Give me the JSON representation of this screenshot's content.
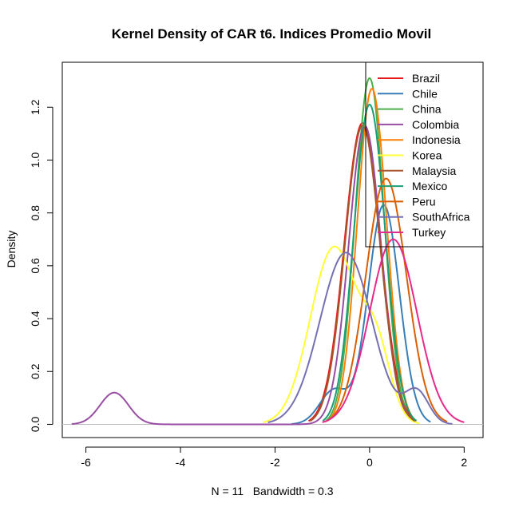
{
  "chart_data": {
    "type": "line",
    "title": "Kernel Density of CAR t6. Indices Promedio Movil",
    "xlabel": "N = 11   Bandwidth = 0.3",
    "ylabel": "Density",
    "xlim": [
      -6.5,
      2.4
    ],
    "ylim": [
      -0.05,
      1.37
    ],
    "x_ticks": [
      -6,
      -4,
      -2,
      0,
      2
    ],
    "y_ticks": [
      0.0,
      0.2,
      0.4,
      0.6,
      0.8,
      1.0,
      1.2
    ],
    "x_tick_labels": [
      "-6",
      "-4",
      "-2",
      "0",
      "2"
    ],
    "y_tick_labels": [
      "0.0",
      "0.2",
      "0.4",
      "0.6",
      "0.8",
      "1.0",
      "1.2"
    ],
    "legend_position": "top-right",
    "baseline": 0,
    "series": [
      {
        "name": "Brazil",
        "color": "#E41A1C",
        "components": [
          [
            -0.15,
            0.38,
            1.14
          ]
        ]
      },
      {
        "name": "Chile",
        "color": "#377EB8",
        "components": [
          [
            0.3,
            0.33,
            0.83
          ],
          [
            -0.75,
            0.3,
            0.13
          ]
        ]
      },
      {
        "name": "China",
        "color": "#4DAF4A",
        "components": [
          [
            0.0,
            0.305,
            1.31
          ]
        ]
      },
      {
        "name": "Colombia",
        "color": "#984EA3",
        "components": [
          [
            -0.1,
            0.34,
            1.13
          ],
          [
            -5.4,
            0.3,
            0.12
          ]
        ]
      },
      {
        "name": "Indonesia",
        "color": "#FF7F00",
        "components": [
          [
            0.05,
            0.31,
            1.27
          ]
        ]
      },
      {
        "name": "Korea",
        "color": "#FFFF33",
        "components": [
          [
            -0.75,
            0.5,
            0.67
          ],
          [
            0.15,
            0.3,
            0.25
          ]
        ]
      },
      {
        "name": "Malaysia",
        "color": "#A65628",
        "components": [
          [
            -0.15,
            0.37,
            1.13
          ]
        ]
      },
      {
        "name": "Mexico",
        "color": "#1B9E77",
        "components": [
          [
            0.0,
            0.33,
            1.21
          ]
        ]
      },
      {
        "name": "Peru",
        "color": "#D95F02",
        "components": [
          [
            0.35,
            0.43,
            0.93
          ]
        ]
      },
      {
        "name": "SouthAfrica",
        "color": "#7570B3",
        "components": [
          [
            -0.5,
            0.55,
            0.65
          ],
          [
            1.0,
            0.25,
            0.12
          ]
        ]
      },
      {
        "name": "Turkey",
        "color": "#E7298A",
        "components": [
          [
            0.5,
            0.5,
            0.7
          ]
        ]
      }
    ]
  }
}
